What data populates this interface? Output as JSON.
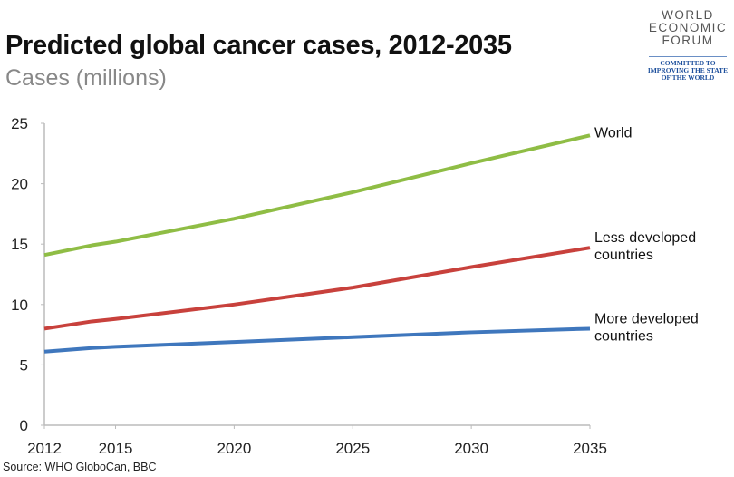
{
  "chart_data": {
    "type": "line",
    "title": "Predicted global cancer cases, 2012-2035",
    "subtitle": "Cases (millions)",
    "source": "Source: WHO GloboCan, BBC",
    "x": [
      2012,
      2014,
      2015,
      2020,
      2025,
      2030,
      2035
    ],
    "xlim": [
      2012,
      2035
    ],
    "ylim": [
      0,
      25
    ],
    "xticks": [
      2012,
      2015,
      2020,
      2025,
      2030,
      2035
    ],
    "yticks": [
      0,
      5,
      10,
      15,
      20,
      25
    ],
    "grid": false,
    "series": [
      {
        "name": "World",
        "label_lines": [
          "World"
        ],
        "color": "#8fbd45",
        "values": [
          14.1,
          14.9,
          15.2,
          17.1,
          19.3,
          21.7,
          24.0
        ]
      },
      {
        "name": "Less developed countries",
        "label_lines": [
          "Less developed",
          "countries"
        ],
        "color": "#c8413c",
        "values": [
          8.0,
          8.6,
          8.8,
          10.0,
          11.4,
          13.1,
          14.7
        ]
      },
      {
        "name": "More developed countries",
        "label_lines": [
          "More developed",
          "countries"
        ],
        "color": "#3f77bd",
        "values": [
          6.1,
          6.4,
          6.5,
          6.9,
          7.3,
          7.7,
          8.0
        ]
      }
    ]
  },
  "logo": {
    "lines": [
      "WORLD",
      "ECONOMIC",
      "FORUM"
    ],
    "tagline": [
      "COMMITTED TO",
      "IMPROVING THE STATE",
      "OF THE WORLD"
    ]
  }
}
